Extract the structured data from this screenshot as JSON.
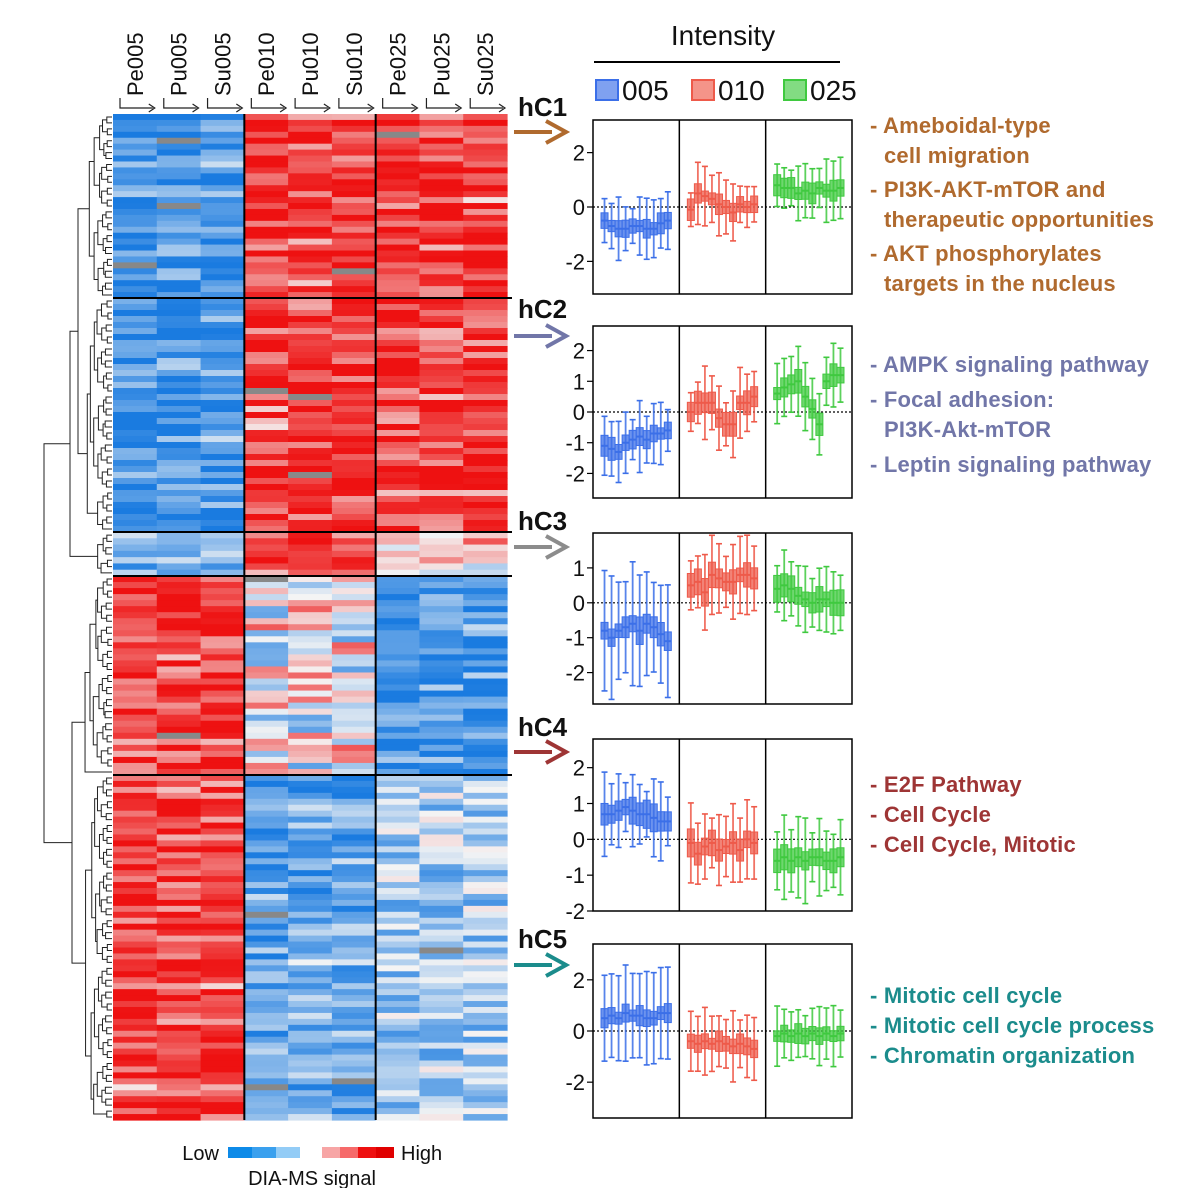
{
  "heatmap": {
    "samples": [
      "Pe005",
      "Pu005",
      "Su005",
      "Pe010",
      "Pu010",
      "Su010",
      "Pe025",
      "Pu025",
      "Su025"
    ],
    "clusters": [
      {
        "id": "hC1",
        "pattern": [
          -1,
          1,
          1
        ]
      },
      {
        "id": "hC2",
        "pattern": [
          -1,
          1,
          1
        ]
      },
      {
        "id": "hC3",
        "pattern": [
          -0.6,
          1,
          0.2
        ]
      },
      {
        "id": "hC4",
        "pattern": [
          1,
          0.05,
          -1
        ]
      },
      {
        "id": "hC5",
        "pattern": [
          1,
          -0.8,
          -0.4
        ]
      }
    ],
    "legend": {
      "low": "Low",
      "high": "High",
      "caption": "DIA-MS signal"
    },
    "colors": {
      "low": "#1a7be0",
      "high": "#ee1111",
      "mid": "#f4f4f4",
      "missing": "#888888"
    }
  },
  "intensity_title": "Intensity",
  "groups": [
    {
      "label": "005",
      "color": "#3b6fe8"
    },
    {
      "label": "010",
      "color": "#ee5a4a"
    },
    {
      "label": "025",
      "color": "#3fc93f"
    }
  ],
  "chart_data": [
    {
      "type": "box",
      "cluster": "hC1",
      "arrow_color": "#b06a2e",
      "ylim": [
        -3.2,
        3.2
      ],
      "yticks": [
        2,
        0,
        -2
      ],
      "series": [
        {
          "name": "005",
          "values": [
            -0.5,
            -0.7,
            -0.8,
            -0.8,
            -0.7,
            -0.7,
            -0.8,
            -0.8,
            -0.6,
            -0.5
          ]
        },
        {
          "name": "010",
          "values": [
            -0.1,
            0.5,
            0.4,
            0.3,
            0.1,
            0.0,
            -0.2,
            0.1,
            0.0,
            0.1
          ]
        },
        {
          "name": "025",
          "values": [
            0.8,
            0.7,
            0.7,
            0.5,
            0.6,
            0.5,
            0.7,
            0.6,
            0.6,
            0.7
          ]
        }
      ]
    },
    {
      "type": "box",
      "cluster": "hC2",
      "arrow_color": "#7176a8",
      "ylim": [
        -2.8,
        2.8
      ],
      "yticks": [
        2,
        1,
        0,
        -1,
        -2
      ],
      "series": [
        {
          "name": "005",
          "values": [
            -1.1,
            -1.2,
            -1.3,
            -1.0,
            -0.9,
            -0.8,
            -0.9,
            -0.7,
            -0.7,
            -0.6
          ]
        },
        {
          "name": "010",
          "values": [
            0.0,
            0.3,
            0.3,
            0.3,
            -0.2,
            -0.4,
            -0.4,
            0.3,
            0.3,
            0.5
          ]
        },
        {
          "name": "025",
          "values": [
            0.6,
            0.8,
            0.9,
            1.0,
            0.5,
            0.1,
            -0.4,
            1.0,
            1.2,
            1.2
          ]
        }
      ]
    },
    {
      "type": "box",
      "cluster": "hC3",
      "arrow_color": "#8c8c8c",
      "ylim": [
        -2.9,
        2.0
      ],
      "yticks": [
        1,
        0,
        -1,
        -2
      ],
      "series": [
        {
          "name": "005",
          "values": [
            -0.8,
            -1.0,
            -0.8,
            -0.7,
            -0.6,
            -0.8,
            -0.6,
            -0.7,
            -0.9,
            -1.1
          ]
        },
        {
          "name": "010",
          "values": [
            0.5,
            0.6,
            0.3,
            0.8,
            0.7,
            0.6,
            0.6,
            0.8,
            0.8,
            0.7
          ]
        },
        {
          "name": "025",
          "values": [
            0.4,
            0.5,
            0.4,
            0.2,
            0.1,
            0.0,
            0.1,
            0.1,
            0.0,
            0.0
          ]
        }
      ]
    },
    {
      "type": "box",
      "cluster": "hC4",
      "arrow_color": "#9e3535",
      "ylim": [
        -2.0,
        2.8
      ],
      "yticks": [
        2,
        1,
        0,
        -1,
        -2
      ],
      "series": [
        {
          "name": "005",
          "values": [
            0.7,
            0.7,
            0.8,
            0.9,
            0.8,
            0.7,
            0.7,
            0.6,
            0.5,
            0.5
          ]
        },
        {
          "name": "010",
          "values": [
            -0.1,
            -0.4,
            -0.2,
            -0.1,
            -0.3,
            -0.2,
            -0.1,
            -0.3,
            0.0,
            -0.1
          ]
        },
        {
          "name": "025",
          "values": [
            -0.6,
            -0.5,
            -0.6,
            -0.5,
            -0.6,
            -0.5,
            -0.5,
            -0.6,
            -0.6,
            -0.5
          ]
        }
      ]
    },
    {
      "type": "box",
      "cluster": "hC5",
      "arrow_color": "#1b8c8c",
      "ylim": [
        -3.4,
        3.4
      ],
      "yticks": [
        2,
        0,
        -2
      ],
      "series": [
        {
          "name": "005",
          "values": [
            0.5,
            0.6,
            0.5,
            0.7,
            0.6,
            0.6,
            0.5,
            0.5,
            0.7,
            0.7
          ]
        },
        {
          "name": "010",
          "values": [
            -0.4,
            -0.5,
            -0.4,
            -0.5,
            -0.4,
            -0.5,
            -0.6,
            -0.5,
            -0.6,
            -0.7
          ]
        },
        {
          "name": "025",
          "values": [
            -0.2,
            -0.1,
            -0.2,
            -0.1,
            -0.2,
            -0.1,
            -0.2,
            -0.1,
            -0.2,
            -0.1
          ]
        }
      ]
    }
  ],
  "annotations": [
    {
      "cluster": "hC1",
      "color": "#b06a2e",
      "items": [
        {
          "dash": "- ",
          "lines": [
            "Ameboidal-type",
            "cell migration"
          ]
        },
        {
          "dash": "- ",
          "lines": [
            "PI3K-AKT-mTOR and",
            "therapeutic opportunities"
          ]
        },
        {
          "dash": "- ",
          "lines": [
            "AKT phosphorylates",
            "targets in the nucleus"
          ]
        }
      ]
    },
    {
      "cluster": "hC2",
      "color": "#7176a8",
      "items": [
        {
          "dash": "- ",
          "lines": [
            "AMPK signaling pathway"
          ]
        },
        {
          "dash": "- ",
          "lines": [
            "Focal adhesion:",
            "PI3K-Akt-mTOR"
          ]
        },
        {
          "dash": "- ",
          "lines": [
            "Leptin signaling pathway"
          ]
        }
      ]
    },
    {
      "cluster": "hC4",
      "color": "#9e3535",
      "items": [
        {
          "dash": "- ",
          "lines": [
            "E2F Pathway"
          ]
        },
        {
          "dash": "- ",
          "lines": [
            "Cell Cycle"
          ]
        },
        {
          "dash": "- ",
          "lines": [
            "Cell Cycle, Mitotic"
          ]
        }
      ]
    },
    {
      "cluster": "hC5",
      "color": "#1b8c8c",
      "items": [
        {
          "dash": "- ",
          "lines": [
            "Mitotic cell cycle"
          ]
        },
        {
          "dash": "- ",
          "lines": [
            "Mitotic cell cycle process"
          ]
        },
        {
          "dash": "- ",
          "lines": [
            "Chromatin organization"
          ]
        }
      ]
    }
  ]
}
